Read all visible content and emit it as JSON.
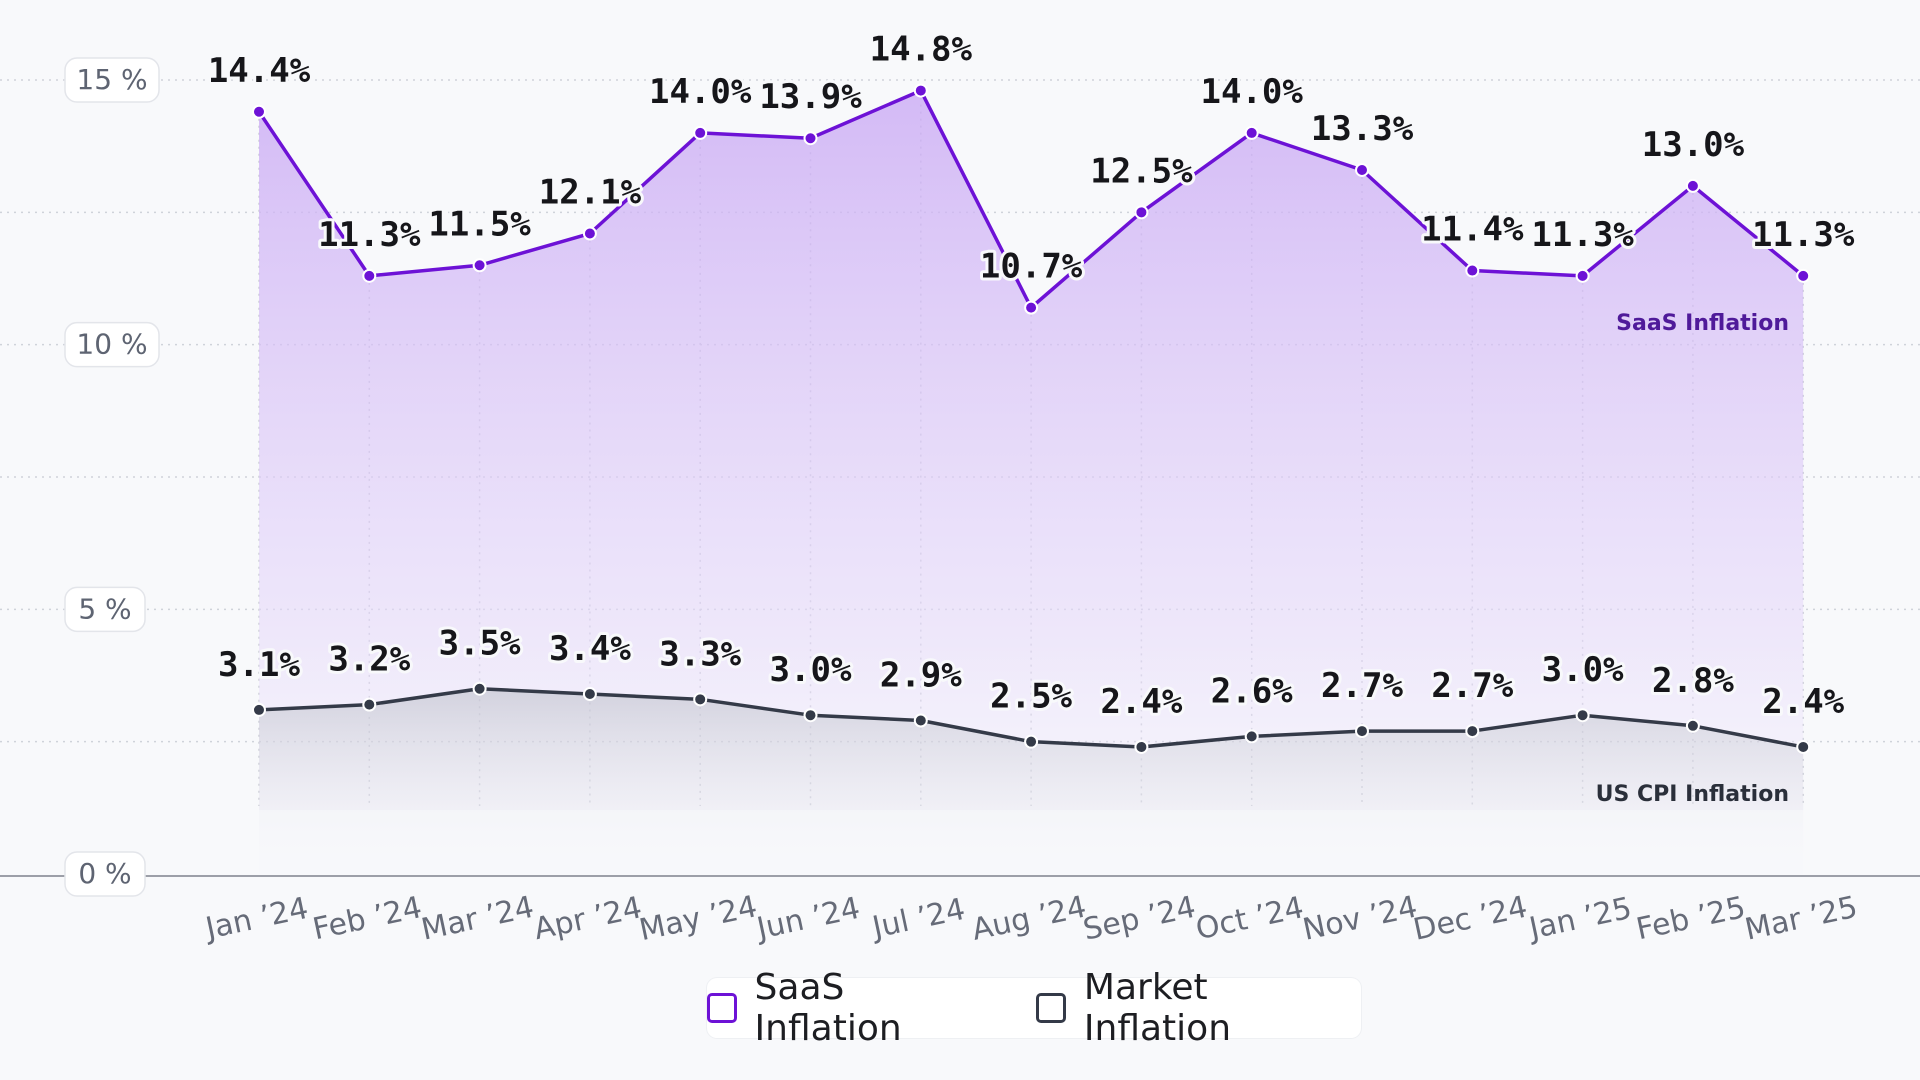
{
  "chart_data": {
    "type": "area",
    "title": "",
    "xlabel": "",
    "ylabel": "",
    "ylim": [
      0,
      15
    ],
    "y_ticks": [
      0,
      5,
      10,
      15
    ],
    "y_tick_labels": [
      "0 %",
      "5 %",
      "10 %",
      "15 %"
    ],
    "grid": true,
    "categories": [
      "Jan ’24",
      "Feb ’24",
      "Mar ’24",
      "Apr ’24",
      "May ’24",
      "Jun ’24",
      "Jul ’24",
      "Aug ’24",
      "Sep ’24",
      "Oct ’24",
      "Nov ’24",
      "Dec ’24",
      "Jan ’25",
      "Feb ’25",
      "Mar ’25"
    ],
    "series": [
      {
        "name": "SaaS Inflation",
        "color": "#6d12d6",
        "values": [
          14.4,
          11.3,
          11.5,
          12.1,
          14.0,
          13.9,
          14.8,
          10.7,
          12.5,
          14.0,
          13.3,
          11.4,
          11.3,
          13.0,
          11.3
        ],
        "labels": [
          "14.4%",
          "11.3%",
          "11.5%",
          "12.1%",
          "14.0%",
          "13.9%",
          "14.8%",
          "10.7%",
          "12.5%",
          "14.0%",
          "13.3%",
          "11.4%",
          "11.3%",
          "13.0%",
          "11.3%"
        ],
        "tag": "SaaS Inflation"
      },
      {
        "name": "Market Inflation",
        "color": "#343a48",
        "values": [
          3.1,
          3.2,
          3.5,
          3.4,
          3.3,
          3.0,
          2.9,
          2.5,
          2.4,
          2.6,
          2.7,
          2.7,
          3.0,
          2.8,
          2.4
        ],
        "labels": [
          "3.1%",
          "3.2%",
          "3.5%",
          "3.4%",
          "3.3%",
          "3.0%",
          "2.9%",
          "2.5%",
          "2.4%",
          "2.6%",
          "2.7%",
          "2.7%",
          "3.0%",
          "2.8%",
          "2.4%"
        ],
        "tag": "US CPI Inflation"
      }
    ],
    "legend": {
      "position": "bottom-center",
      "entries": [
        {
          "label": "SaaS Inflation",
          "color": "#6d12d6"
        },
        {
          "label": "Market Inflation",
          "color": "#343a48"
        }
      ]
    }
  }
}
